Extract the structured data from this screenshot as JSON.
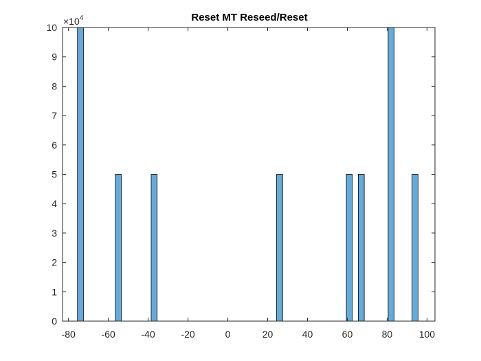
{
  "chart_data": {
    "type": "bar",
    "title": "Reset MT Reseed/Reset",
    "xlabel": "",
    "ylabel": "",
    "xlim": [
      -83,
      104
    ],
    "ylim": [
      0,
      100000
    ],
    "bar_width": 3,
    "x_ticks": [
      -80,
      -60,
      -40,
      -20,
      0,
      20,
      40,
      60,
      80,
      100
    ],
    "y_ticks": [
      0,
      10000,
      20000,
      30000,
      40000,
      50000,
      60000,
      70000,
      80000,
      90000,
      100000
    ],
    "y_tick_labels": [
      "0",
      "1",
      "2",
      "3",
      "4",
      "5",
      "6",
      "7",
      "8",
      "9",
      "10"
    ],
    "y_multiplier_base": "×10",
    "y_multiplier_exp": "4",
    "bar_color": "#0072BD",
    "grid": false,
    "x": [
      -74,
      -55,
      -37,
      26,
      61,
      67,
      82,
      94
    ],
    "values": [
      100000,
      50000,
      50000,
      50000,
      50000,
      50000,
      100000,
      50000
    ]
  }
}
